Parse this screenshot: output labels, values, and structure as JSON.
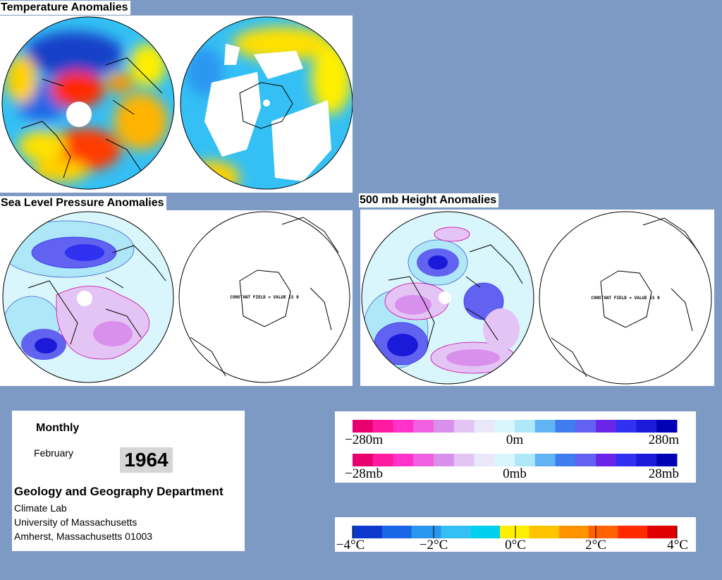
{
  "sections": {
    "temperature": "Temperature Anomalies",
    "slp": "Sea Level Pressure Anomalies",
    "height": "500 mb Height Anomalies"
  },
  "globes": {
    "slp_right_label": "CONSTANT FIELD = VALUE IS 0",
    "height_right_label": "CONSTANT FIELD = VALUE IS 0"
  },
  "info": {
    "period": "Monthly",
    "month": "February",
    "year": "1964",
    "department": "Geology and Geography Department",
    "lab": "Climate Lab",
    "university": "University of Massachusetts",
    "address": "Amherst, Massachusetts 01003"
  },
  "legends": {
    "height": {
      "min": "−280m",
      "mid": "0m",
      "max": "280m"
    },
    "pressure": {
      "min": "−28mb",
      "mid": "0mb",
      "max": "28mb"
    },
    "temperature": {
      "t1": "−4°C",
      "t2": "−2°C",
      "t3": "0°C",
      "t4": "2°C",
      "t5": "4°C"
    }
  },
  "colors": {
    "background": "#7d9ac4",
    "negative_pressure_scale": [
      "#e8006e",
      "#ff1aa0",
      "#ff33cc",
      "#f060e0",
      "#d890ec",
      "#e4c4f4",
      "#e8e8fa",
      "#d8f6fc",
      "#aee8f8",
      "#60b4f4",
      "#3f7cf0",
      "#6262f0",
      "#6a26e8",
      "#3030f0",
      "#1a1ad8",
      "#0000b4"
    ],
    "temperature_scale": [
      "#0c38cc",
      "#1a66e6",
      "#2a96f0",
      "#34c0f4",
      "#00d0ee",
      "#ffee00",
      "#ffc400",
      "#ff9400",
      "#ff6200",
      "#ff2a00",
      "#e00000"
    ]
  }
}
